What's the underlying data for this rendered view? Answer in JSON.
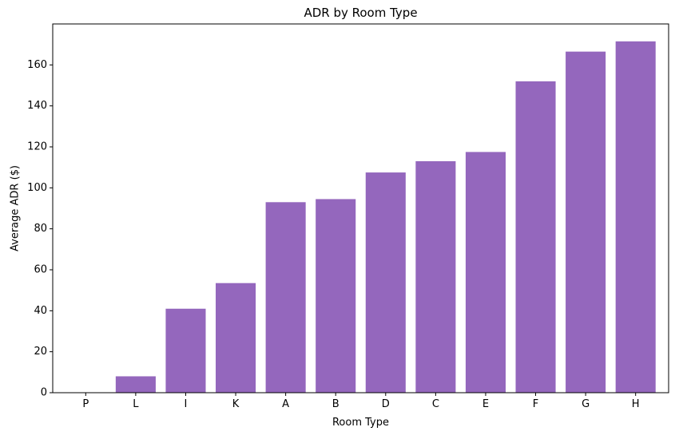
{
  "chart_data": {
    "type": "bar",
    "title": "ADR by Room Type",
    "xlabel": "Room Type",
    "ylabel": "Average ADR ($)",
    "categories": [
      "P",
      "L",
      "I",
      "K",
      "A",
      "B",
      "D",
      "C",
      "E",
      "F",
      "G",
      "H"
    ],
    "values": [
      0,
      8.0,
      41.0,
      53.5,
      93.0,
      94.5,
      107.5,
      113.0,
      117.5,
      152.0,
      166.5,
      171.5
    ],
    "ylim": [
      0,
      180
    ],
    "yticks": [
      0,
      20,
      40,
      60,
      80,
      100,
      120,
      140,
      160
    ],
    "bar_color": "#9467bd",
    "grid": false,
    "legend": "none"
  }
}
